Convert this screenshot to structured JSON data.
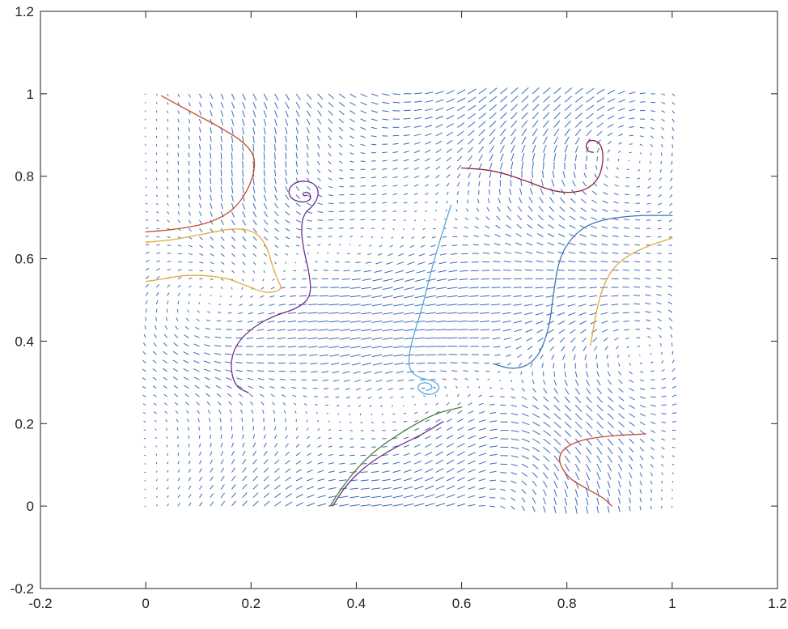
{
  "chart_data": {
    "type": "line",
    "subtype": "quiver-with-streamlines",
    "title": "",
    "xlabel": "",
    "ylabel": "",
    "xlim": [
      -0.2,
      1.2
    ],
    "ylim": [
      -0.2,
      1.2
    ],
    "x_ticks": [
      "-0.2",
      "0",
      "0.2",
      "0.4",
      "0.6",
      "0.8",
      "1",
      "1.2"
    ],
    "y_ticks": [
      "-0.2",
      "0",
      "0.2",
      "0.4",
      "0.6",
      "0.8",
      "1",
      "1.2"
    ],
    "grid": false,
    "legend": "none",
    "quiver": {
      "x_range": [
        0,
        1
      ],
      "y_range": [
        0,
        1
      ],
      "grid_points_per_axis": 50,
      "color": "#3a6bb8"
    },
    "streamlines": [
      {
        "color": "#c44a2c",
        "points": [
          [
            0.03,
            0.995
          ],
          [
            0.08,
            0.96
          ],
          [
            0.14,
            0.92
          ],
          [
            0.19,
            0.88
          ],
          [
            0.21,
            0.84
          ],
          [
            0.2,
            0.78
          ],
          [
            0.17,
            0.72
          ],
          [
            0.12,
            0.685
          ],
          [
            0.05,
            0.67
          ],
          [
            0.0,
            0.665
          ]
        ]
      },
      {
        "color": "#e3a93a",
        "points": [
          [
            0.0,
            0.64
          ],
          [
            0.05,
            0.645
          ],
          [
            0.11,
            0.66
          ],
          [
            0.17,
            0.675
          ],
          [
            0.21,
            0.665
          ],
          [
            0.23,
            0.63
          ],
          [
            0.24,
            0.585
          ],
          [
            0.25,
            0.55
          ],
          [
            0.26,
            0.525
          ],
          [
            0.23,
            0.515
          ],
          [
            0.19,
            0.535
          ],
          [
            0.15,
            0.555
          ],
          [
            0.08,
            0.562
          ],
          [
            0.03,
            0.55
          ],
          [
            0.0,
            0.545
          ]
        ]
      },
      {
        "color": "#6c2e8c",
        "points": [
          [
            0.195,
            0.275
          ],
          [
            0.17,
            0.29
          ],
          [
            0.16,
            0.34
          ],
          [
            0.17,
            0.39
          ],
          [
            0.2,
            0.43
          ],
          [
            0.24,
            0.46
          ],
          [
            0.29,
            0.48
          ],
          [
            0.315,
            0.51
          ],
          [
            0.31,
            0.57
          ],
          [
            0.3,
            0.62
          ],
          [
            0.295,
            0.67
          ],
          [
            0.3,
            0.71
          ],
          [
            0.32,
            0.73
          ],
          [
            0.33,
            0.76
          ],
          [
            0.32,
            0.785
          ],
          [
            0.29,
            0.79
          ],
          [
            0.27,
            0.77
          ],
          [
            0.275,
            0.745
          ],
          [
            0.3,
            0.735
          ],
          [
            0.315,
            0.745
          ],
          [
            0.31,
            0.762
          ],
          [
            0.298,
            0.76
          ],
          [
            0.3,
            0.752
          ],
          [
            0.305,
            0.754
          ]
        ]
      },
      {
        "color": "#5ba7dc",
        "points": [
          [
            0.58,
            0.73
          ],
          [
            0.56,
            0.65
          ],
          [
            0.54,
            0.56
          ],
          [
            0.525,
            0.48
          ],
          [
            0.51,
            0.42
          ],
          [
            0.5,
            0.37
          ],
          [
            0.5,
            0.33
          ],
          [
            0.52,
            0.31
          ],
          [
            0.545,
            0.305
          ],
          [
            0.56,
            0.29
          ],
          [
            0.55,
            0.272
          ],
          [
            0.53,
            0.27
          ],
          [
            0.515,
            0.285
          ],
          [
            0.522,
            0.3
          ],
          [
            0.54,
            0.298
          ],
          [
            0.545,
            0.285
          ],
          [
            0.533,
            0.28
          ]
        ]
      },
      {
        "color": "#4d7f3d",
        "points": [
          [
            0.35,
            0.0
          ],
          [
            0.37,
            0.04
          ],
          [
            0.4,
            0.09
          ],
          [
            0.44,
            0.14
          ],
          [
            0.5,
            0.19
          ],
          [
            0.55,
            0.225
          ],
          [
            0.6,
            0.24
          ]
        ]
      },
      {
        "color": "#6c2e8c",
        "points": [
          [
            0.355,
            0.0
          ],
          [
            0.38,
            0.05
          ],
          [
            0.42,
            0.1
          ],
          [
            0.47,
            0.14
          ],
          [
            0.52,
            0.17
          ],
          [
            0.565,
            0.205
          ]
        ]
      },
      {
        "color": "#8c2436",
        "points": [
          [
            0.6,
            0.82
          ],
          [
            0.66,
            0.815
          ],
          [
            0.72,
            0.79
          ],
          [
            0.78,
            0.76
          ],
          [
            0.83,
            0.762
          ],
          [
            0.86,
            0.79
          ],
          [
            0.87,
            0.84
          ],
          [
            0.865,
            0.88
          ],
          [
            0.845,
            0.89
          ],
          [
            0.835,
            0.875
          ],
          [
            0.84,
            0.86
          ],
          [
            0.85,
            0.858
          ]
        ]
      },
      {
        "color": "#3d74b0",
        "points": [
          [
            0.66,
            0.345
          ],
          [
            0.7,
            0.33
          ],
          [
            0.74,
            0.35
          ],
          [
            0.765,
            0.42
          ],
          [
            0.775,
            0.52
          ],
          [
            0.785,
            0.6
          ],
          [
            0.81,
            0.655
          ],
          [
            0.85,
            0.69
          ],
          [
            0.92,
            0.705
          ],
          [
            1.0,
            0.705
          ]
        ]
      },
      {
        "color": "#e3a93a",
        "points": [
          [
            0.845,
            0.39
          ],
          [
            0.855,
            0.47
          ],
          [
            0.87,
            0.54
          ],
          [
            0.895,
            0.59
          ],
          [
            0.94,
            0.625
          ],
          [
            1.0,
            0.65
          ]
        ]
      },
      {
        "color": "#c44a2c",
        "points": [
          [
            0.95,
            0.175
          ],
          [
            0.87,
            0.17
          ],
          [
            0.81,
            0.155
          ],
          [
            0.78,
            0.12
          ],
          [
            0.8,
            0.07
          ],
          [
            0.84,
            0.04
          ],
          [
            0.87,
            0.02
          ],
          [
            0.885,
            0.0
          ]
        ]
      }
    ]
  }
}
